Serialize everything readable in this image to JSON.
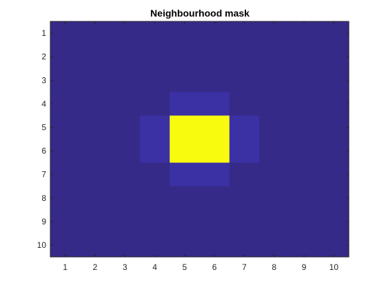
{
  "chart_data": {
    "type": "heatmap",
    "title": "Neighbourhood mask",
    "xlabel": "",
    "ylabel": "",
    "x_ticks": [
      "1",
      "2",
      "3",
      "4",
      "5",
      "6",
      "7",
      "8",
      "9",
      "10"
    ],
    "y_ticks": [
      "1",
      "2",
      "3",
      "4",
      "5",
      "6",
      "7",
      "8",
      "9",
      "10"
    ],
    "x_range": [
      0.5,
      10.5
    ],
    "y_range": [
      0.5,
      10.5
    ],
    "y_direction": "reversed",
    "grid": false,
    "colormap": "parula",
    "clim": [
      0,
      1
    ],
    "colors": {
      "low": "#352A87",
      "mid_low": "#3B31A5",
      "high": "#F9FB0E"
    },
    "values": [
      [
        0,
        0,
        0,
        0,
        0,
        0,
        0,
        0,
        0,
        0
      ],
      [
        0,
        0,
        0,
        0,
        0,
        0,
        0,
        0,
        0,
        0
      ],
      [
        0,
        0,
        0,
        0,
        0,
        0,
        0,
        0,
        0,
        0
      ],
      [
        0,
        0,
        0,
        0,
        0.05,
        0.05,
        0,
        0,
        0,
        0
      ],
      [
        0,
        0,
        0,
        0.05,
        1,
        1,
        0.05,
        0,
        0,
        0
      ],
      [
        0,
        0,
        0,
        0.05,
        1,
        1,
        0.05,
        0,
        0,
        0
      ],
      [
        0,
        0,
        0,
        0,
        0.05,
        0.05,
        0,
        0,
        0,
        0
      ],
      [
        0,
        0,
        0,
        0,
        0,
        0,
        0,
        0,
        0,
        0
      ],
      [
        0,
        0,
        0,
        0,
        0,
        0,
        0,
        0,
        0,
        0
      ],
      [
        0,
        0,
        0,
        0,
        0,
        0,
        0,
        0,
        0,
        0
      ]
    ]
  }
}
